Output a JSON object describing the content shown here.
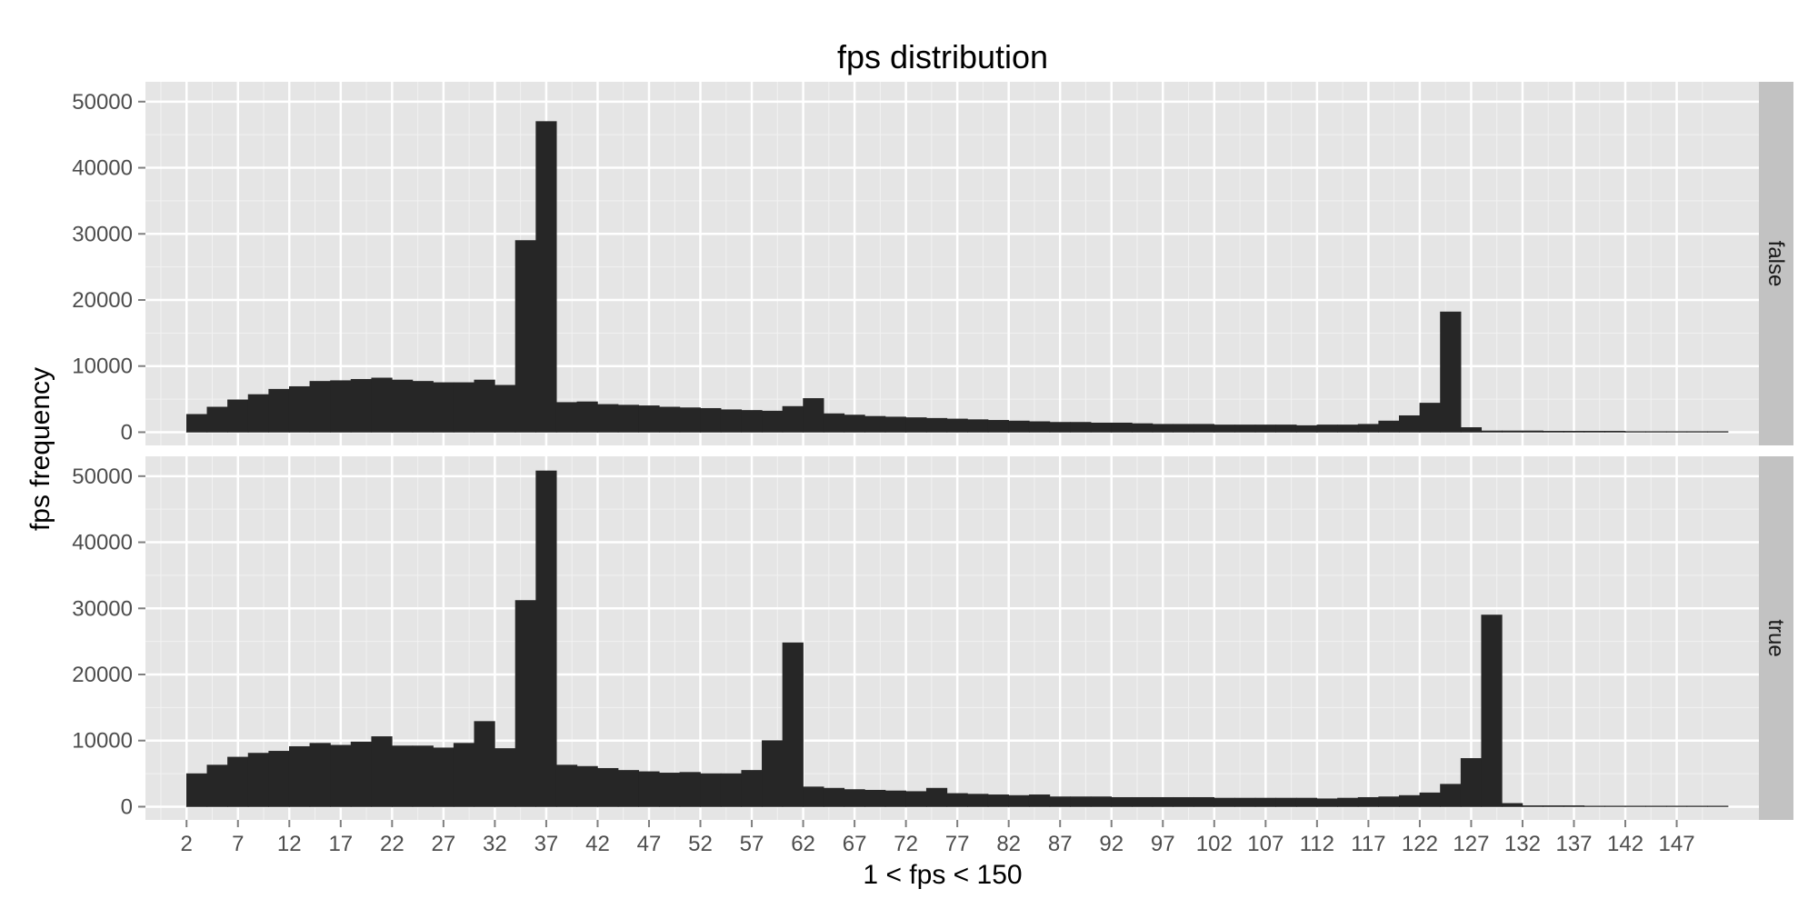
{
  "chart_data": {
    "type": "bar",
    "title": "fps distribution",
    "xlabel": "1 < fps < 150",
    "ylabel": "fps frequency",
    "bin_width": 2,
    "x_first_bin_left": 2,
    "xlim": [
      -2,
      155
    ],
    "ylim": [
      -2000,
      53000
    ],
    "x_tick_labels": [
      "2",
      "7",
      "12",
      "17",
      "22",
      "27",
      "32",
      "37",
      "42",
      "47",
      "52",
      "57",
      "62",
      "67",
      "72",
      "77",
      "82",
      "87",
      "92",
      "97",
      "102",
      "107",
      "112",
      "117",
      "122",
      "127",
      "132",
      "137",
      "142",
      "147"
    ],
    "y_tick_labels": [
      "0",
      "10000",
      "20000",
      "30000",
      "40000",
      "50000"
    ],
    "grid": true,
    "panels": [
      {
        "strip": "false",
        "values": [
          2700,
          3800,
          4900,
          5700,
          6500,
          6900,
          7700,
          7800,
          8000,
          8200,
          7900,
          7700,
          7500,
          7500,
          7900,
          7100,
          29000,
          47000,
          4500,
          4600,
          4200,
          4100,
          4000,
          3800,
          3700,
          3600,
          3400,
          3300,
          3200,
          3900,
          5100,
          2800,
          2600,
          2400,
          2300,
          2200,
          2100,
          2000,
          1900,
          1800,
          1700,
          1600,
          1500,
          1500,
          1400,
          1400,
          1300,
          1200,
          1200,
          1200,
          1100,
          1100,
          1100,
          1100,
          1000,
          1100,
          1100,
          1200,
          1700,
          2500,
          4400,
          18200,
          700,
          200,
          200,
          200,
          150,
          150,
          150,
          150,
          100,
          100,
          100,
          100,
          100
        ]
      },
      {
        "strip": "true",
        "values": [
          5000,
          6300,
          7500,
          8100,
          8400,
          9100,
          9600,
          9300,
          9800,
          10600,
          9200,
          9200,
          8900,
          9600,
          12900,
          8800,
          31200,
          50800,
          6300,
          6100,
          5800,
          5500,
          5300,
          5100,
          5200,
          5000,
          5000,
          5500,
          10000,
          24800,
          3000,
          2800,
          2600,
          2500,
          2400,
          2300,
          2800,
          2000,
          1900,
          1800,
          1700,
          1800,
          1500,
          1500,
          1500,
          1400,
          1400,
          1400,
          1400,
          1400,
          1300,
          1300,
          1300,
          1300,
          1300,
          1200,
          1300,
          1400,
          1500,
          1700,
          2100,
          3400,
          7300,
          29000,
          500,
          150,
          150,
          150,
          100,
          100,
          100,
          100,
          100,
          100,
          100
        ]
      }
    ]
  }
}
